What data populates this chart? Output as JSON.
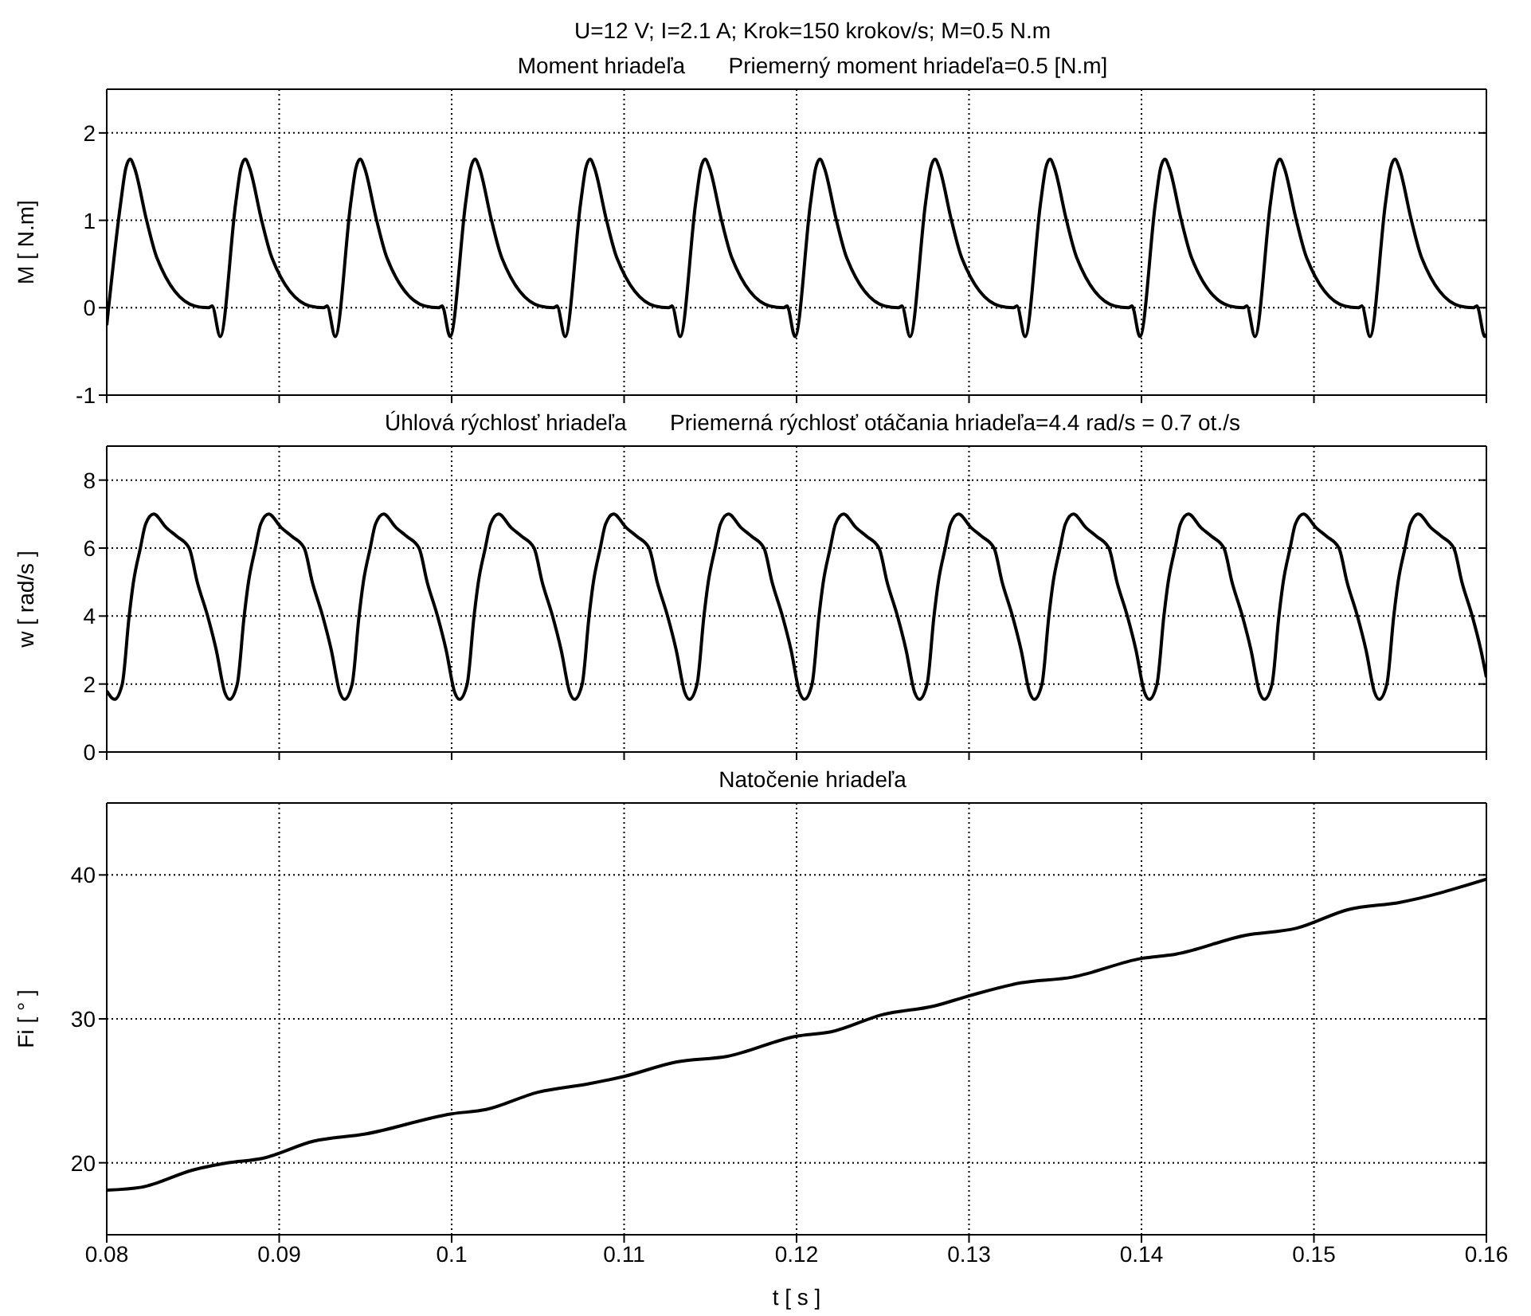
{
  "chart_data": [
    {
      "type": "line",
      "title": "U=12 V; I=2.1 A; Krok=150 krokov/s; M=0.5 N.m",
      "subtitle": "Moment hriadeľa       Priemerný moment hriadeľa=0.5 [N.m]",
      "ylabel": "M [ N.m]",
      "xlim": [
        0.08,
        0.16
      ],
      "xticks": [
        0.08,
        0.09,
        0.1,
        0.11,
        0.12,
        0.13,
        0.14,
        0.15,
        0.16
      ],
      "ylim": [
        -1,
        2.5
      ],
      "yticks": [
        -1,
        0,
        1,
        2
      ],
      "grid": true,
      "tick_labels": "y",
      "series": [
        {
          "color": "#000000",
          "x": [
            0.08,
            0.08081,
            0.08111,
            0.08136,
            0.08161,
            0.08231,
            0.08291,
            0.08511,
            0.08591,
            0.08611,
            0.08658,
            0.08748,
            0.08778,
            0.08803,
            0.08828,
            0.08898,
            0.08958,
            0.09178,
            0.09258,
            0.09278,
            0.09325,
            0.09415,
            0.09445,
            0.0947,
            0.09495,
            0.09565,
            0.09625,
            0.09845,
            0.09925,
            0.09945,
            0.09991,
            0.10081,
            0.10111,
            0.10136,
            0.10161,
            0.10231,
            0.10291,
            0.10511,
            0.10591,
            0.10611,
            0.10658,
            0.10748,
            0.10778,
            0.10803,
            0.10828,
            0.10898,
            0.10958,
            0.11178,
            0.11258,
            0.11278,
            0.11325,
            0.11415,
            0.11445,
            0.1147,
            0.11495,
            0.11565,
            0.11625,
            0.11845,
            0.11925,
            0.11945,
            0.11991,
            0.12081,
            0.12111,
            0.12136,
            0.12161,
            0.12231,
            0.12291,
            0.12511,
            0.12591,
            0.12611,
            0.12658,
            0.12748,
            0.12778,
            0.12803,
            0.12828,
            0.12898,
            0.12958,
            0.13178,
            0.13258,
            0.13278,
            0.13325,
            0.13415,
            0.13445,
            0.1347,
            0.13495,
            0.13565,
            0.13625,
            0.13845,
            0.13925,
            0.13945,
            0.13991,
            0.14081,
            0.14111,
            0.14136,
            0.14161,
            0.14231,
            0.14291,
            0.14511,
            0.14591,
            0.14611,
            0.14658,
            0.14748,
            0.14778,
            0.14803,
            0.14828,
            0.14898,
            0.14958,
            0.15178,
            0.15258,
            0.15278,
            0.15325,
            0.15415,
            0.15445,
            0.1547,
            0.15495,
            0.15565,
            0.15625,
            0.15845,
            0.15925,
            0.15945,
            0.15991,
            0.16
          ],
          "values": [
            -0.2,
            1.2,
            1.6,
            1.7,
            1.6,
            1.0,
            0.57,
            0.02,
            0,
            0.02,
            -0.33,
            1.2,
            1.6,
            1.7,
            1.6,
            1.0,
            0.57,
            0.02,
            0,
            0.02,
            -0.33,
            1.2,
            1.6,
            1.7,
            1.6,
            1.0,
            0.57,
            0.02,
            0,
            0.02,
            -0.33,
            1.2,
            1.6,
            1.7,
            1.6,
            1.0,
            0.57,
            0.02,
            0,
            0.02,
            -0.33,
            1.2,
            1.6,
            1.7,
            1.6,
            1.0,
            0.57,
            0.02,
            0,
            0.02,
            -0.33,
            1.2,
            1.6,
            1.7,
            1.6,
            1.0,
            0.57,
            0.02,
            0,
            0.02,
            -0.33,
            1.2,
            1.6,
            1.7,
            1.6,
            1.0,
            0.57,
            0.02,
            0,
            0.02,
            -0.33,
            1.2,
            1.6,
            1.7,
            1.6,
            1.0,
            0.57,
            0.02,
            0,
            0.02,
            -0.33,
            1.2,
            1.6,
            1.7,
            1.6,
            1.0,
            0.57,
            0.02,
            0,
            0.02,
            -0.33,
            1.2,
            1.6,
            1.7,
            1.6,
            1.0,
            0.57,
            0.02,
            0,
            0.02,
            -0.33,
            1.2,
            1.6,
            1.7,
            1.6,
            1.0,
            0.57,
            0.02,
            0,
            0.02,
            -0.33,
            1.2,
            1.6,
            1.7,
            1.6,
            1.0,
            0.57,
            0.02,
            0,
            0.02,
            -0.33,
            -0.3
          ]
        }
      ]
    },
    {
      "type": "line",
      "title": "Úhlová rýchlosť hriadeľa       Priemerná rýchlosť otáčania hriadeľa=4.4 rad/s = 0.7 ot./s",
      "ylabel": "w [ rad/s ]",
      "xlim": [
        0.08,
        0.16
      ],
      "xticks": [
        0.08,
        0.09,
        0.1,
        0.11,
        0.12,
        0.13,
        0.14,
        0.15,
        0.16
      ],
      "ylim": [
        0,
        9
      ],
      "yticks": [
        0,
        2,
        4,
        6,
        8
      ],
      "grid": true,
      "tick_labels": "y",
      "series": [
        {
          "color": "#000000",
          "x": [
            0.08,
            0.08045,
            0.0809,
            0.0813,
            0.08155,
            0.08195,
            0.08225,
            0.08272,
            0.08345,
            0.08405,
            0.08478,
            0.08525,
            0.08585,
            0.08635,
            0.08685,
            0.08712,
            0.08757,
            0.08797,
            0.08822,
            0.08862,
            0.08892,
            0.08939,
            0.09012,
            0.09072,
            0.09145,
            0.09192,
            0.09252,
            0.09302,
            0.09352,
            0.09378,
            0.09423,
            0.09463,
            0.09488,
            0.09528,
            0.09558,
            0.09605,
            0.09678,
            0.09738,
            0.09811,
            0.09858,
            0.09918,
            0.09968,
            0.10018,
            0.10045,
            0.1009,
            0.1013,
            0.10155,
            0.10195,
            0.10225,
            0.10272,
            0.10345,
            0.10405,
            0.10478,
            0.10525,
            0.10585,
            0.10635,
            0.10685,
            0.10712,
            0.10757,
            0.10797,
            0.10822,
            0.10862,
            0.10892,
            0.10939,
            0.11012,
            0.11072,
            0.11145,
            0.11192,
            0.11252,
            0.11302,
            0.11352,
            0.11378,
            0.11423,
            0.11463,
            0.11488,
            0.11528,
            0.11558,
            0.11605,
            0.11678,
            0.11738,
            0.11811,
            0.11858,
            0.11918,
            0.11968,
            0.12018,
            0.12045,
            0.1209,
            0.1213,
            0.12155,
            0.12195,
            0.12225,
            0.12272,
            0.12345,
            0.12405,
            0.12478,
            0.12525,
            0.12585,
            0.12635,
            0.12685,
            0.12712,
            0.12757,
            0.12797,
            0.12822,
            0.12862,
            0.12892,
            0.12939,
            0.13012,
            0.13072,
            0.13145,
            0.13192,
            0.13252,
            0.13302,
            0.13352,
            0.13378,
            0.13423,
            0.13463,
            0.13488,
            0.13528,
            0.13558,
            0.13605,
            0.13678,
            0.13738,
            0.13811,
            0.13858,
            0.13918,
            0.13968,
            0.14018,
            0.14045,
            0.1409,
            0.1413,
            0.14155,
            0.14195,
            0.14225,
            0.14272,
            0.14345,
            0.14405,
            0.14478,
            0.14525,
            0.14585,
            0.14635,
            0.14685,
            0.14712,
            0.14757,
            0.14797,
            0.14822,
            0.14862,
            0.14892,
            0.14939,
            0.15012,
            0.15072,
            0.15145,
            0.15192,
            0.15252,
            0.15302,
            0.15352,
            0.15378,
            0.15423,
            0.15463,
            0.15488,
            0.15528,
            0.15558,
            0.15605,
            0.15678,
            0.15738,
            0.15811,
            0.15858,
            0.15918,
            0.15968,
            0.16
          ],
          "values": [
            1.8,
            1.55,
            2.0,
            4.0,
            5.0,
            6.0,
            6.7,
            7.0,
            6.6,
            6.35,
            6.0,
            5.0,
            4.0,
            3.0,
            1.75,
            1.55,
            2.0,
            4.0,
            5.0,
            6.0,
            6.7,
            7.0,
            6.6,
            6.35,
            6.0,
            5.0,
            4.0,
            3.0,
            1.75,
            1.55,
            2.0,
            4.0,
            5.0,
            6.0,
            6.7,
            7.0,
            6.6,
            6.35,
            6.0,
            5.0,
            4.0,
            3.0,
            1.75,
            1.55,
            2.0,
            4.0,
            5.0,
            6.0,
            6.7,
            7.0,
            6.6,
            6.35,
            6.0,
            5.0,
            4.0,
            3.0,
            1.75,
            1.55,
            2.0,
            4.0,
            5.0,
            6.0,
            6.7,
            7.0,
            6.6,
            6.35,
            6.0,
            5.0,
            4.0,
            3.0,
            1.75,
            1.55,
            2.0,
            4.0,
            5.0,
            6.0,
            6.7,
            7.0,
            6.6,
            6.35,
            6.0,
            5.0,
            4.0,
            3.0,
            1.75,
            1.55,
            2.0,
            4.0,
            5.0,
            6.0,
            6.7,
            7.0,
            6.6,
            6.35,
            6.0,
            5.0,
            4.0,
            3.0,
            1.75,
            1.55,
            2.0,
            4.0,
            5.0,
            6.0,
            6.7,
            7.0,
            6.6,
            6.35,
            6.0,
            5.0,
            4.0,
            3.0,
            1.75,
            1.55,
            2.0,
            4.0,
            5.0,
            6.0,
            6.7,
            7.0,
            6.6,
            6.35,
            6.0,
            5.0,
            4.0,
            3.0,
            1.75,
            1.55,
            2.0,
            4.0,
            5.0,
            6.0,
            6.7,
            7.0,
            6.6,
            6.35,
            6.0,
            5.0,
            4.0,
            3.0,
            1.75,
            1.55,
            2.0,
            4.0,
            5.0,
            6.0,
            6.7,
            7.0,
            6.6,
            6.35,
            6.0,
            5.0,
            4.0,
            3.0,
            1.75,
            1.55,
            2.0,
            4.0,
            5.0,
            6.0,
            6.7,
            7.0,
            6.6,
            6.35,
            6.0,
            5.0,
            4.0,
            3.0,
            2.2
          ]
        }
      ]
    },
    {
      "type": "line",
      "title": "Natočenie hriadeľa",
      "xlabel": "t [ s ]",
      "ylabel": "Fi [ ° ]",
      "xlim": [
        0.08,
        0.16
      ],
      "xticks": [
        0.08,
        0.09,
        0.1,
        0.11,
        0.12,
        0.13,
        0.14,
        0.15,
        0.16
      ],
      "ylim": [
        15,
        45
      ],
      "yticks": [
        20,
        30,
        40
      ],
      "grid": true,
      "series": [
        {
          "color": "#000000",
          "x": [
            0.08,
            0.082,
            0.085,
            0.087,
            0.089,
            0.092,
            0.095,
            0.1,
            0.102,
            0.105,
            0.108,
            0.11,
            0.113,
            0.116,
            0.12,
            0.122,
            0.125,
            0.128,
            0.13,
            0.133,
            0.136,
            0.14,
            0.142,
            0.146,
            0.149,
            0.152,
            0.155,
            0.16
          ],
          "values": [
            18.1,
            18.3,
            19.5,
            20,
            20.3,
            21.5,
            22,
            23.4,
            23.7,
            24.9,
            25.5,
            26,
            27,
            27.4,
            28.8,
            29.1,
            30.3,
            30.9,
            31.6,
            32.5,
            32.9,
            34.2,
            34.5,
            35.8,
            36.3,
            37.6,
            38.1,
            39.7
          ]
        }
      ]
    }
  ]
}
